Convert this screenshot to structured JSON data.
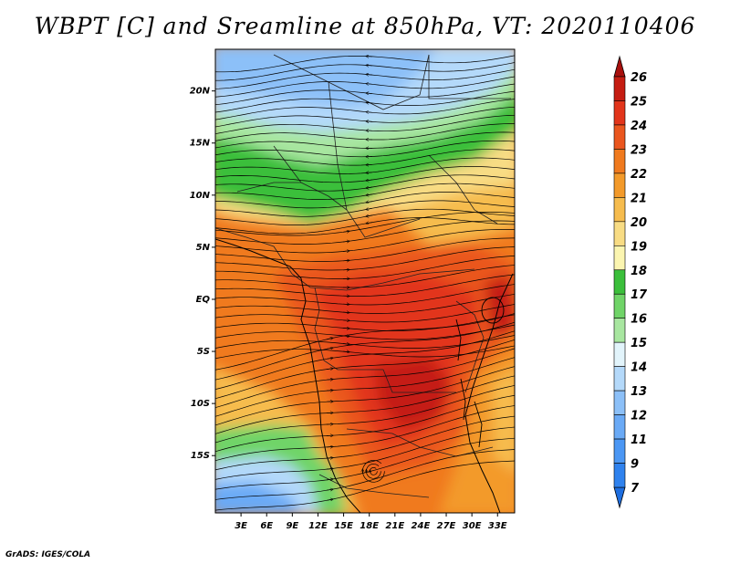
{
  "title": "WBPT [C] and Sreamline at 850hPa, VT: 2020110406",
  "footer": "GrADS: IGES/COLA",
  "map": {
    "lat_labels": [
      "20N",
      "15N",
      "10N",
      "5N",
      "EQ",
      "5S",
      "10S",
      "15S"
    ],
    "lon_labels": [
      "3E",
      "6E",
      "9E",
      "12E",
      "15E",
      "18E",
      "21E",
      "24E",
      "27E",
      "30E",
      "33E"
    ],
    "lat_range": [
      -20.5,
      24.0
    ],
    "lon_range": [
      0.0,
      35.0
    ]
  },
  "colorbar": {
    "labels": [
      "7",
      "9",
      "11",
      "12",
      "13",
      "14",
      "15",
      "16",
      "17",
      "18",
      "19",
      "20",
      "21",
      "22",
      "23",
      "24",
      "25",
      "26"
    ],
    "colors": [
      "#1e6ee0",
      "#2f82ee",
      "#4b97f4",
      "#6aaaf6",
      "#8cc0f8",
      "#b4d9fa",
      "#e2f4fb",
      "#a8e6a0",
      "#70d468",
      "#3bbf3b",
      "#fbf5b0",
      "#f8dc84",
      "#f6bc4e",
      "#f39a2a",
      "#f07a1e",
      "#ea561e",
      "#e2351b",
      "#c51d12",
      "#a8100d"
    ],
    "extend": "both"
  }
}
